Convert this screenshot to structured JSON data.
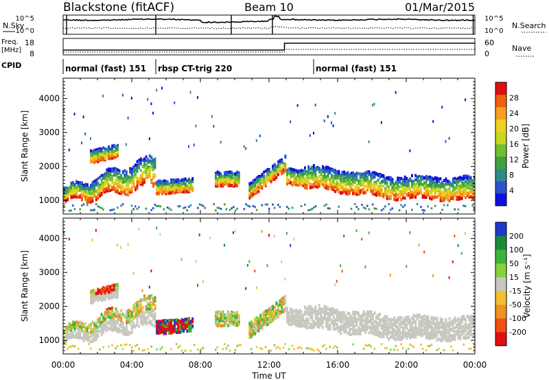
{
  "header": {
    "station": "Blackstone (fitACF)",
    "beam": "Beam 10",
    "date": "01/Mar/2015"
  },
  "strip_labels": {
    "nsky": "N.Sky",
    "nsearch": "N.Search",
    "freq_line1": "Freq.",
    "freq_line2": "[MHz]",
    "nave": "Nave",
    "cpid": "CPID"
  },
  "strip_ticks": {
    "nsky_top": "10^5",
    "nsky_bottom": "10^0",
    "freq_top": "18",
    "freq_bottom": "8",
    "nave_top": "60",
    "nave_bottom": "0"
  },
  "cpid_segments": [
    {
      "label": "normal (fast) 151",
      "start": 0.0,
      "end": 5.4
    },
    {
      "label": "rbsp CT-trig 220",
      "start": 5.4,
      "end": 14.6
    },
    {
      "label": "normal (fast) 151",
      "start": 14.6,
      "end": 24.0
    }
  ],
  "chart_data": [
    {
      "type": "heatmap",
      "quantity": "power",
      "ylabel": "Slant Range [km]",
      "xlim": [
        0,
        24
      ],
      "ylim": [
        600,
        4600
      ],
      "yticks": [
        "1000",
        "2000",
        "3000",
        "4000"
      ],
      "colorbar": {
        "label": "Power [dB]",
        "ticks": [
          "4",
          "8",
          "12",
          "16",
          "20",
          "24",
          "28"
        ],
        "colors": [
          "#1010e0",
          "#2a52d0",
          "#2f8a8a",
          "#3fa040",
          "#70c030",
          "#c8d820",
          "#f0d020",
          "#f8a020",
          "#f06010",
          "#e01010"
        ]
      }
    },
    {
      "type": "heatmap",
      "quantity": "velocity",
      "ylabel": "Slant Range [km]",
      "xlabel": "Time UT",
      "xlim": [
        0,
        24
      ],
      "ylim": [
        600,
        4600
      ],
      "yticks": [
        "1000",
        "2000",
        "3000",
        "4000"
      ],
      "xticks": [
        "00:00",
        "04:00",
        "08:00",
        "12:00",
        "16:00",
        "20:00",
        "00:00"
      ],
      "colorbar": {
        "label": "Velocity [m s⁻¹]",
        "ticks": [
          "200",
          "100",
          "50",
          "15",
          "-15",
          "-50",
          "-100",
          "-200"
        ],
        "colors": [
          "#1a3cc8",
          "#1a8a3a",
          "#3cb43c",
          "#86d23c",
          "#c8c8c0",
          "#f0c030",
          "#f09020",
          "#f05010",
          "#e01010"
        ]
      }
    }
  ]
}
